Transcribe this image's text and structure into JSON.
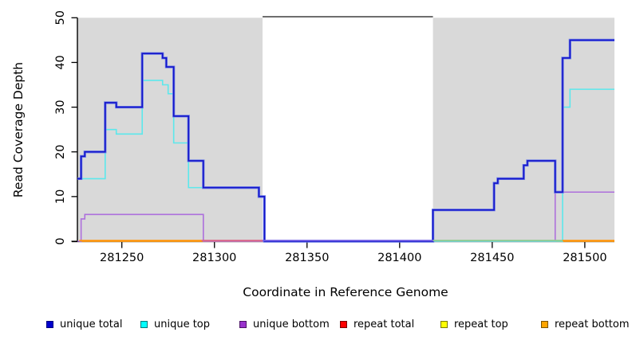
{
  "chart_data": {
    "type": "line",
    "subtype": "step-coverage-plot",
    "xlabel": "Coordinate in Reference Genome",
    "ylabel": "Read Coverage Depth",
    "xlim": [
      281226,
      281516
    ],
    "ylim": [
      0,
      50
    ],
    "x_ticks": [
      281250,
      281300,
      281350,
      281400,
      281450,
      281500
    ],
    "y_ticks": [
      0,
      10,
      20,
      30,
      40,
      50
    ],
    "grid": false,
    "background_regions": [
      {
        "name": "covered-left",
        "from": 281226,
        "to": 281326,
        "color": "#D9D9D9"
      },
      {
        "name": "gap",
        "from": 281326,
        "to": 281418,
        "color": "#FFFFFF"
      },
      {
        "name": "covered-right",
        "from": 281418,
        "to": 281516,
        "color": "#D9D9D9"
      }
    ],
    "gap_top_line": {
      "from": 281326,
      "to": 281418,
      "color": "#6E6E6E"
    },
    "series": [
      {
        "name": "unique total",
        "draw_order": 6,
        "strokes": [
          {
            "color": "#6677E8",
            "width": 3.2
          },
          {
            "color": "#1515C8",
            "width": 1.6
          }
        ],
        "steps": [
          [
            281226,
            14
          ],
          [
            281228,
            19
          ],
          [
            281230,
            20
          ],
          [
            281241,
            31
          ],
          [
            281247,
            30
          ],
          [
            281261,
            42
          ],
          [
            281272,
            41
          ],
          [
            281274,
            39
          ],
          [
            281278,
            28
          ],
          [
            281286,
            18
          ],
          [
            281294,
            12
          ],
          [
            281324,
            10
          ],
          [
            281327,
            0
          ],
          [
            281418,
            7
          ],
          [
            281451,
            13
          ],
          [
            281453,
            14
          ],
          [
            281467,
            17
          ],
          [
            281469,
            18
          ],
          [
            281484,
            11
          ],
          [
            281488,
            41
          ],
          [
            281492,
            45
          ]
        ]
      },
      {
        "name": "unique top",
        "draw_order": 5,
        "strokes": [
          {
            "color": "#5CE8EC",
            "width": 1.6
          }
        ],
        "steps": [
          [
            281226,
            14
          ],
          [
            281241,
            25
          ],
          [
            281247,
            24
          ],
          [
            281261,
            36
          ],
          [
            281272,
            35
          ],
          [
            281275,
            33
          ],
          [
            281278,
            22
          ],
          [
            281286,
            12
          ],
          [
            281324,
            10
          ],
          [
            281327,
            0
          ],
          [
            281488,
            30
          ],
          [
            281492,
            34
          ]
        ]
      },
      {
        "name": "unique bottom",
        "draw_order": 4,
        "strokes": [
          {
            "color": "#AD6FDC",
            "width": 1.6
          }
        ],
        "steps": [
          [
            281226,
            0
          ],
          [
            281228,
            5
          ],
          [
            281230,
            6
          ],
          [
            281294,
            0
          ],
          [
            281484,
            11
          ]
        ]
      },
      {
        "name": "repeat total",
        "draw_order": 1,
        "strokes": [
          {
            "color": "#DC6486",
            "width": 1.5
          }
        ],
        "steps": [
          [
            281227,
            0
          ]
        ]
      },
      {
        "name": "repeat top",
        "draw_order": 2,
        "strokes": [
          {
            "color": "#EEEE55",
            "width": 1.5
          }
        ],
        "steps": [
          [
            281227,
            0
          ]
        ]
      },
      {
        "name": "repeat bottom",
        "draw_order": 3,
        "strokes": [
          {
            "color": "#FF9712",
            "width": 1.5
          }
        ],
        "steps": [
          [
            281227,
            0
          ]
        ]
      }
    ],
    "zero_line_segments": [
      {
        "from": 281227,
        "to": 281293,
        "color": "#FF9712"
      },
      {
        "from": 281293,
        "to": 281326,
        "color": "#DC6486"
      },
      {
        "from": 281326,
        "to": 281418,
        "color": "#7661E6"
      },
      {
        "from": 281418,
        "to": 281488,
        "color": "#8FCB8F"
      },
      {
        "from": 281488,
        "to": 281516,
        "color": "#FF9712"
      }
    ],
    "legend": {
      "position": "bottom",
      "items": [
        {
          "label": "unique total",
          "color": "#0000CD",
          "border": "#000080"
        },
        {
          "label": "unique top",
          "color": "#00FFFF",
          "border": "#007A7A"
        },
        {
          "label": "unique bottom",
          "color": "#9932CC",
          "border": "#4B1066"
        },
        {
          "label": "repeat total",
          "color": "#FF0000",
          "border": "#7A0000"
        },
        {
          "label": "repeat top",
          "color": "#FFFF00",
          "border": "#7A7A00"
        },
        {
          "label": "repeat bottom",
          "color": "#FFA500",
          "border": "#7A5200"
        }
      ]
    },
    "axis_color": "#000000"
  }
}
